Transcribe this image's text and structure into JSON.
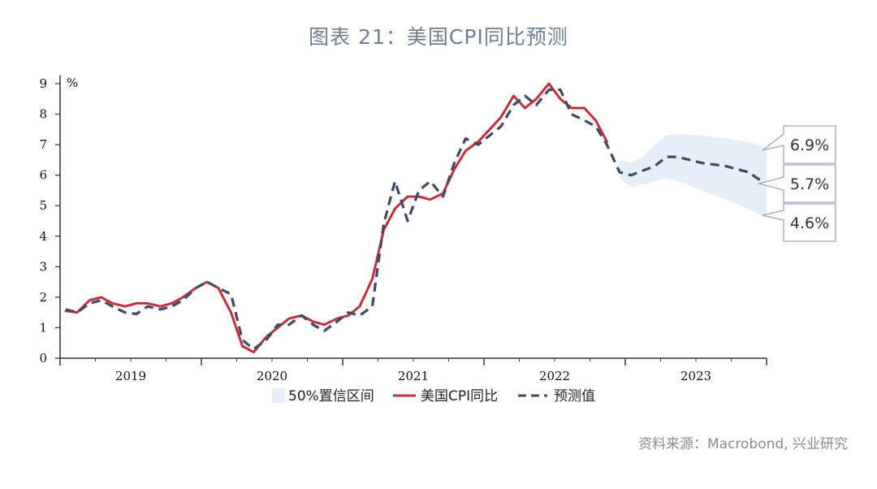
{
  "title": "图表 21：美国CPI同比预测",
  "source": "资料来源：Macrobond, 兴业研究",
  "chart_data": {
    "type": "line",
    "ylabel": "%",
    "ylim": [
      0,
      9
    ],
    "yticks": [
      "0",
      "1",
      "2",
      "3",
      "4",
      "5",
      "6",
      "7",
      "8",
      "9"
    ],
    "xlim": [
      2019,
      2024
    ],
    "xtick_labels": [
      {
        "label": "2019",
        "x": 2019.5
      },
      {
        "label": "2020",
        "x": 2020.5
      },
      {
        "label": "2021",
        "x": 2021.5
      },
      {
        "label": "2022",
        "x": 2022.5
      },
      {
        "label": "2023",
        "x": 2023.5
      }
    ],
    "legend": [
      {
        "key": "band",
        "label": "50%置信区间"
      },
      {
        "key": "cpi",
        "label": "美国CPI同比"
      },
      {
        "key": "forecast",
        "label": "预测值"
      }
    ],
    "legend_position": "bottom",
    "colors": {
      "cpi": "#c0303d",
      "forecast": "#3e4a66",
      "band": "#e6eef8",
      "axis": "#333333"
    },
    "series": [
      {
        "key": "cpi",
        "name": "美国CPI同比",
        "points": [
          [
            2019.04,
            1.55
          ],
          [
            2019.12,
            1.5
          ],
          [
            2019.21,
            1.9
          ],
          [
            2019.29,
            2.0
          ],
          [
            2019.37,
            1.8
          ],
          [
            2019.46,
            1.7
          ],
          [
            2019.54,
            1.8
          ],
          [
            2019.62,
            1.8
          ],
          [
            2019.71,
            1.7
          ],
          [
            2019.79,
            1.8
          ],
          [
            2019.87,
            2.0
          ],
          [
            2019.96,
            2.3
          ],
          [
            2020.04,
            2.5
          ],
          [
            2020.12,
            2.3
          ],
          [
            2020.21,
            1.5
          ],
          [
            2020.29,
            0.4
          ],
          [
            2020.37,
            0.2
          ],
          [
            2020.46,
            0.7
          ],
          [
            2020.54,
            1.0
          ],
          [
            2020.62,
            1.3
          ],
          [
            2020.71,
            1.4
          ],
          [
            2020.79,
            1.2
          ],
          [
            2020.87,
            1.1
          ],
          [
            2020.96,
            1.3
          ],
          [
            2021.04,
            1.4
          ],
          [
            2021.12,
            1.7
          ],
          [
            2021.21,
            2.6
          ],
          [
            2021.29,
            4.2
          ],
          [
            2021.37,
            4.9
          ],
          [
            2021.46,
            5.3
          ],
          [
            2021.54,
            5.3
          ],
          [
            2021.62,
            5.2
          ],
          [
            2021.71,
            5.4
          ],
          [
            2021.79,
            6.2
          ],
          [
            2021.87,
            6.8
          ],
          [
            2021.96,
            7.1
          ],
          [
            2022.04,
            7.5
          ],
          [
            2022.12,
            7.9
          ],
          [
            2022.21,
            8.6
          ],
          [
            2022.29,
            8.2
          ],
          [
            2022.37,
            8.5
          ],
          [
            2022.46,
            9.0
          ],
          [
            2022.54,
            8.5
          ],
          [
            2022.62,
            8.2
          ],
          [
            2022.71,
            8.2
          ],
          [
            2022.79,
            7.8
          ],
          [
            2022.87,
            7.1
          ]
        ]
      },
      {
        "key": "forecast",
        "name": "预测值",
        "points": [
          [
            2019.04,
            1.6
          ],
          [
            2019.12,
            1.5
          ],
          [
            2019.21,
            1.8
          ],
          [
            2019.29,
            1.9
          ],
          [
            2019.37,
            1.7
          ],
          [
            2019.46,
            1.5
          ],
          [
            2019.54,
            1.45
          ],
          [
            2019.62,
            1.7
          ],
          [
            2019.71,
            1.6
          ],
          [
            2019.79,
            1.7
          ],
          [
            2019.87,
            1.9
          ],
          [
            2019.96,
            2.3
          ],
          [
            2020.04,
            2.5
          ],
          [
            2020.12,
            2.3
          ],
          [
            2020.21,
            2.1
          ],
          [
            2020.29,
            0.6
          ],
          [
            2020.37,
            0.3
          ],
          [
            2020.46,
            0.6
          ],
          [
            2020.54,
            1.1
          ],
          [
            2020.62,
            1.1
          ],
          [
            2020.71,
            1.4
          ],
          [
            2020.79,
            1.1
          ],
          [
            2020.87,
            0.9
          ],
          [
            2020.96,
            1.2
          ],
          [
            2021.04,
            1.5
          ],
          [
            2021.12,
            1.4
          ],
          [
            2021.21,
            1.7
          ],
          [
            2021.29,
            4.4
          ],
          [
            2021.37,
            5.8
          ],
          [
            2021.46,
            4.5
          ],
          [
            2021.54,
            5.5
          ],
          [
            2021.62,
            5.8
          ],
          [
            2021.71,
            5.3
          ],
          [
            2021.79,
            6.4
          ],
          [
            2021.87,
            7.2
          ],
          [
            2021.96,
            7.0
          ],
          [
            2022.04,
            7.3
          ],
          [
            2022.12,
            7.6
          ],
          [
            2022.21,
            8.3
          ],
          [
            2022.29,
            8.6
          ],
          [
            2022.37,
            8.3
          ],
          [
            2022.46,
            8.8
          ],
          [
            2022.54,
            8.8
          ],
          [
            2022.62,
            8.0
          ],
          [
            2022.71,
            7.8
          ],
          [
            2022.79,
            7.6
          ],
          [
            2022.87,
            7.0
          ],
          [
            2022.96,
            6.1
          ],
          [
            2023.04,
            6.0
          ],
          [
            2023.21,
            6.3
          ],
          [
            2023.29,
            6.6
          ],
          [
            2023.37,
            6.6
          ],
          [
            2023.54,
            6.4
          ],
          [
            2023.71,
            6.3
          ],
          [
            2023.87,
            6.1
          ],
          [
            2024.0,
            5.7
          ]
        ]
      }
    ],
    "band": {
      "key": "band",
      "name": "50%置信区间",
      "upper": [
        [
          2022.96,
          6.5
        ],
        [
          2023.04,
          6.4
        ],
        [
          2023.12,
          6.6
        ],
        [
          2023.21,
          7.0
        ],
        [
          2023.29,
          7.3
        ],
        [
          2023.37,
          7.35
        ],
        [
          2023.54,
          7.3
        ],
        [
          2023.71,
          7.2
        ],
        [
          2023.87,
          7.1
        ],
        [
          2024.0,
          6.9
        ]
      ],
      "lower": [
        [
          2022.96,
          5.9
        ],
        [
          2023.04,
          5.6
        ],
        [
          2023.12,
          5.7
        ],
        [
          2023.21,
          5.8
        ],
        [
          2023.29,
          5.9
        ],
        [
          2023.37,
          5.8
        ],
        [
          2023.54,
          5.5
        ],
        [
          2023.71,
          5.2
        ],
        [
          2023.87,
          4.9
        ],
        [
          2024.0,
          4.6
        ]
      ]
    },
    "callouts": [
      {
        "text": "6.9%",
        "value": 6.9
      },
      {
        "text": "5.7%",
        "value": 5.7
      },
      {
        "text": "4.6%",
        "value": 4.6
      }
    ]
  }
}
